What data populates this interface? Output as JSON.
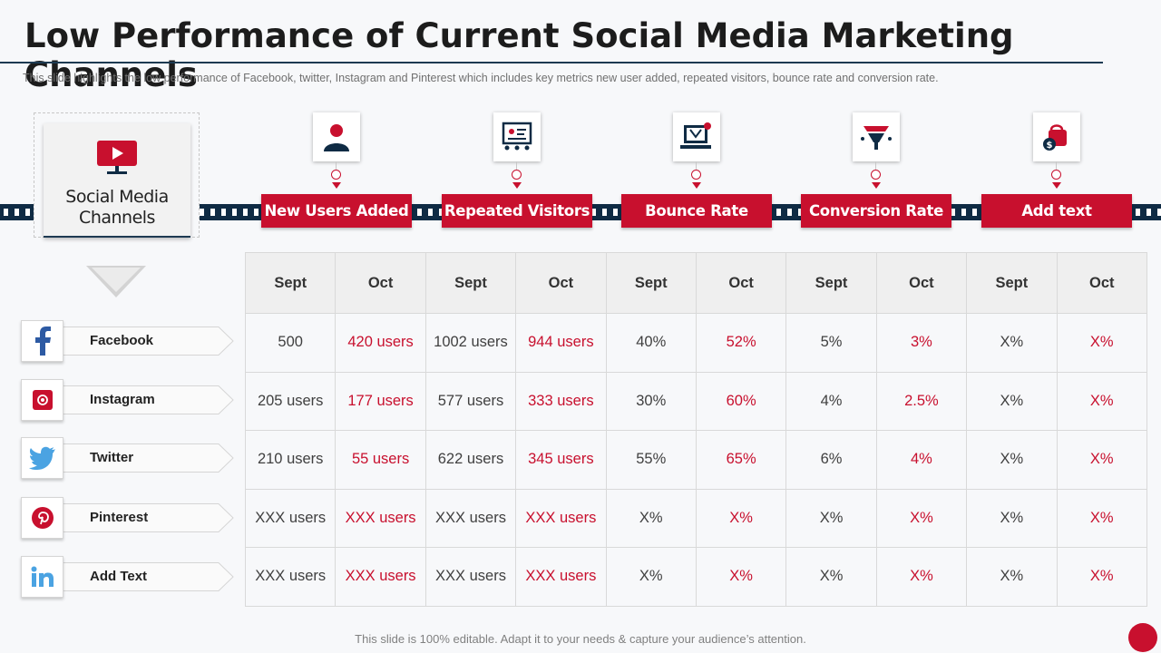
{
  "slide": {
    "title": "Low Performance of Current Social Media Marketing Channels",
    "subtitle": "This slide highlights the low performance  of Facebook, twitter, Instagram and Pinterest which includes key metrics new user added, repeated visitors, bounce rate and conversion  rate.",
    "footer": "This slide is 100% editable. Adapt it to your needs & capture your audience’s attention."
  },
  "channels_card": {
    "label_line1": "Social Media",
    "label_line2": "Channels",
    "icon": "youtube-monitor-icon"
  },
  "metrics": [
    {
      "label": "New Users Added",
      "icon": "user-icon"
    },
    {
      "label": "Repeated Visitors",
      "icon": "presentation-board-icon"
    },
    {
      "label": "Bounce Rate",
      "icon": "bounce-laptop-icon"
    },
    {
      "label": "Conversion Rate",
      "icon": "conversion-funnel-icon"
    },
    {
      "label": "Add text",
      "icon": "money-bag-icon"
    }
  ],
  "table": {
    "headers": [
      "Sept",
      "Oct",
      "Sept",
      "Oct",
      "Sept",
      "Oct",
      "Sept",
      "Oct",
      "Sept",
      "Oct"
    ],
    "rows": [
      {
        "platform": "Facebook",
        "icon": "facebook-icon",
        "cells": [
          "500",
          "420 users",
          "1002 users",
          "944 users",
          "40%",
          "52%",
          "5%",
          "3%",
          "X%",
          "X%"
        ]
      },
      {
        "platform": "Instagram",
        "icon": "instagram-icon",
        "cells": [
          "205 users",
          "177 users",
          "577 users",
          "333 users",
          "30%",
          "60%",
          "4%",
          "2.5%",
          "X%",
          "X%"
        ]
      },
      {
        "platform": "Twitter",
        "icon": "twitter-icon",
        "cells": [
          "210 users",
          "55 users",
          "622 users",
          "345 users",
          "55%",
          "65%",
          "6%",
          "4%",
          "X%",
          "X%"
        ]
      },
      {
        "platform": "Pinterest",
        "icon": "pinterest-icon",
        "cells": [
          "XXX users",
          "XXX users",
          "XXX users",
          "XXX users",
          "X%",
          "X%",
          "X%",
          "X%",
          "X%",
          "X%"
        ]
      },
      {
        "platform": "Add  Text",
        "icon": "linkedin-icon",
        "cells": [
          "XXX users",
          "XXX users",
          "XXX users",
          "XXX users",
          "X%",
          "X%",
          "X%",
          "X%",
          "X%",
          "X%"
        ]
      }
    ]
  },
  "colors": {
    "accent": "#c8102e",
    "navy": "#0f2b44",
    "text": "#333333"
  }
}
